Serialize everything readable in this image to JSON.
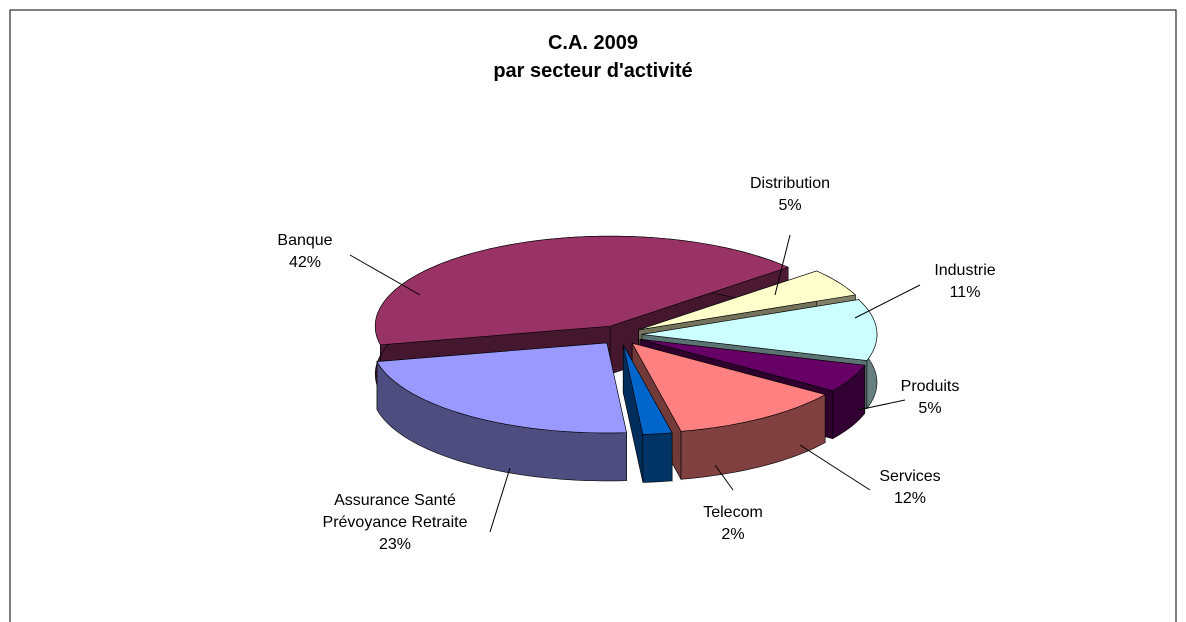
{
  "chart_data": {
    "type": "pie",
    "title": "C.A. 2009",
    "subtitle": "par secteur d'activité",
    "categories": [
      "Banque",
      "Distribution",
      "Industrie",
      "Produits",
      "Services",
      "Telecom",
      "Assurance Santé Prévoyance Retraite"
    ],
    "values": [
      42,
      5,
      11,
      5,
      12,
      2,
      23
    ],
    "value_labels": [
      "42%",
      "5%",
      "11%",
      "5%",
      "12%",
      "2%",
      "23%"
    ],
    "colors": [
      "#993366",
      "#ffffcc",
      "#ccffff",
      "#660066",
      "#ff8080",
      "#0066cc",
      "#9999ff"
    ]
  }
}
